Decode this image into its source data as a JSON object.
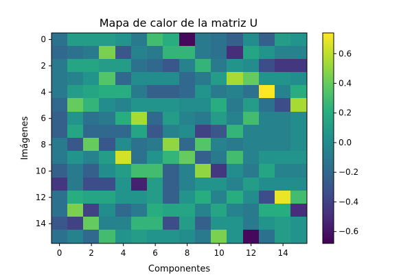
{
  "chart_data": {
    "type": "heatmap",
    "title": "Mapa de calor de la matriz U",
    "xlabel": "Componentes",
    "ylabel": "Imágenes",
    "xticks": [
      0,
      2,
      4,
      6,
      8,
      10,
      12,
      14
    ],
    "yticks": [
      0,
      2,
      4,
      6,
      8,
      10,
      12,
      14
    ],
    "colorbar_ticks": [
      -0.6,
      -0.4,
      -0.2,
      0.0,
      0.2,
      0.4,
      0.6
    ],
    "colorbar_tick_labels": [
      "−0.6",
      "−0.4",
      "−0.2",
      "0.0",
      "0.2",
      "0.4",
      "0.6"
    ],
    "colormap": "viridis",
    "vmin": -0.68,
    "vmax": 0.74,
    "rows": 16,
    "cols": 16,
    "values": [
      [
        -0.15,
        0.1,
        0.1,
        0.1,
        0.05,
        -0.1,
        0.3,
        0.2,
        -0.65,
        -0.1,
        -0.15,
        -0.25,
        0.0,
        -0.25,
        0.1,
        0.05
      ],
      [
        -0.2,
        -0.15,
        -0.1,
        0.45,
        -0.3,
        -0.05,
        -0.1,
        0.25,
        0.25,
        -0.1,
        -0.15,
        -0.5,
        0.15,
        0.05,
        -0.05,
        -0.05
      ],
      [
        -0.1,
        0.15,
        0.15,
        0.1,
        0.1,
        -0.15,
        -0.2,
        -0.3,
        -0.05,
        0.25,
        -0.1,
        0.05,
        0.0,
        -0.35,
        -0.45,
        -0.45
      ],
      [
        -0.1,
        -0.05,
        0.05,
        0.35,
        -0.2,
        0.0,
        0.0,
        0.0,
        -0.2,
        -0.1,
        0.1,
        0.55,
        0.4,
        0.05,
        0.05,
        0.0
      ],
      [
        -0.1,
        0.1,
        0.15,
        0.2,
        0.2,
        -0.1,
        -0.25,
        -0.25,
        -0.2,
        0.05,
        -0.1,
        -0.05,
        -0.15,
        0.74,
        -0.05,
        0.2
      ],
      [
        -0.2,
        0.4,
        0.25,
        0.0,
        -0.05,
        0.05,
        0.05,
        0.05,
        0.0,
        0.0,
        0.2,
        -0.1,
        0.1,
        -0.15,
        -0.35,
        0.55
      ],
      [
        -0.25,
        0.05,
        -0.15,
        -0.1,
        0.2,
        0.55,
        -0.2,
        0.1,
        -0.05,
        -0.1,
        0.1,
        -0.05,
        0.3,
        -0.05,
        -0.05,
        0.0
      ],
      [
        -0.25,
        0.15,
        -0.2,
        -0.2,
        -0.2,
        0.15,
        -0.3,
        -0.05,
        0.0,
        -0.4,
        -0.3,
        0.25,
        -0.05,
        -0.05,
        -0.05,
        0.0
      ],
      [
        -0.1,
        -0.3,
        0.4,
        -0.3,
        0.0,
        -0.15,
        -0.1,
        0.5,
        -0.2,
        0.35,
        -0.05,
        -0.1,
        -0.05,
        -0.05,
        -0.05,
        0.0
      ],
      [
        -0.1,
        0.05,
        -0.05,
        0.1,
        0.65,
        -0.15,
        0.05,
        0.25,
        0.4,
        -0.25,
        -0.1,
        0.3,
        -0.05,
        0.05,
        0.05,
        0.05
      ],
      [
        -0.25,
        -0.1,
        -0.25,
        0.0,
        0.1,
        0.3,
        0.3,
        -0.25,
        -0.05,
        0.5,
        -0.45,
        0.0,
        -0.1,
        0.15,
        -0.05,
        -0.05
      ],
      [
        -0.45,
        -0.1,
        -0.35,
        -0.35,
        0.05,
        -0.55,
        0.1,
        -0.25,
        -0.05,
        0.05,
        0.05,
        -0.05,
        0.1,
        0.0,
        0.0,
        0.0
      ],
      [
        -0.15,
        0.2,
        0.15,
        0.15,
        0.05,
        0.05,
        0.1,
        -0.25,
        0.05,
        0.2,
        -0.05,
        0.2,
        0.0,
        -0.35,
        0.7,
        0.3
      ],
      [
        -0.15,
        0.45,
        -0.4,
        0.0,
        -0.2,
        -0.1,
        0.2,
        0.15,
        0.15,
        -0.05,
        0.15,
        -0.05,
        -0.1,
        0.2,
        0.2,
        -0.5
      ],
      [
        -0.3,
        -0.4,
        0.4,
        -0.05,
        -0.05,
        0.25,
        0.25,
        -0.35,
        0.1,
        -0.25,
        0.05,
        0.05,
        -0.1,
        0.05,
        0.1,
        0.05
      ],
      [
        -0.15,
        -0.05,
        -0.2,
        0.3,
        0.05,
        0.1,
        0.05,
        0.05,
        0.0,
        -0.1,
        0.45,
        0.05,
        -0.65,
        -0.15,
        0.1,
        0.05
      ]
    ]
  }
}
